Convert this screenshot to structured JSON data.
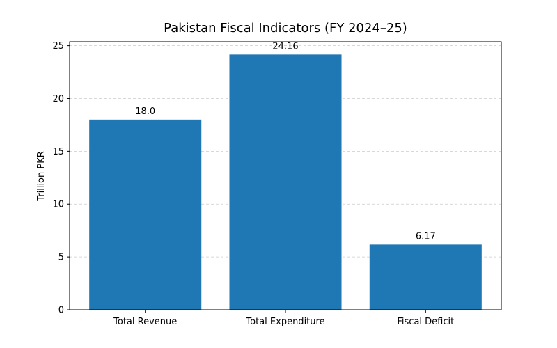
{
  "chart_data": {
    "type": "bar",
    "title": "Pakistan Fiscal Indicators (FY 2024–25)",
    "y_label": "Trillion PKR",
    "categories": [
      "Total Revenue",
      "Total Expenditure",
      "Fiscal Deficit"
    ],
    "values": [
      18,
      24.16,
      6.17
    ],
    "value_labels": [
      "18.0",
      "24.16",
      "6.17"
    ],
    "color": "#1f77b4",
    "ylim": [
      0,
      25.37
    ],
    "yticks": [
      0,
      5,
      10,
      15,
      20,
      25
    ],
    "grid": true
  }
}
